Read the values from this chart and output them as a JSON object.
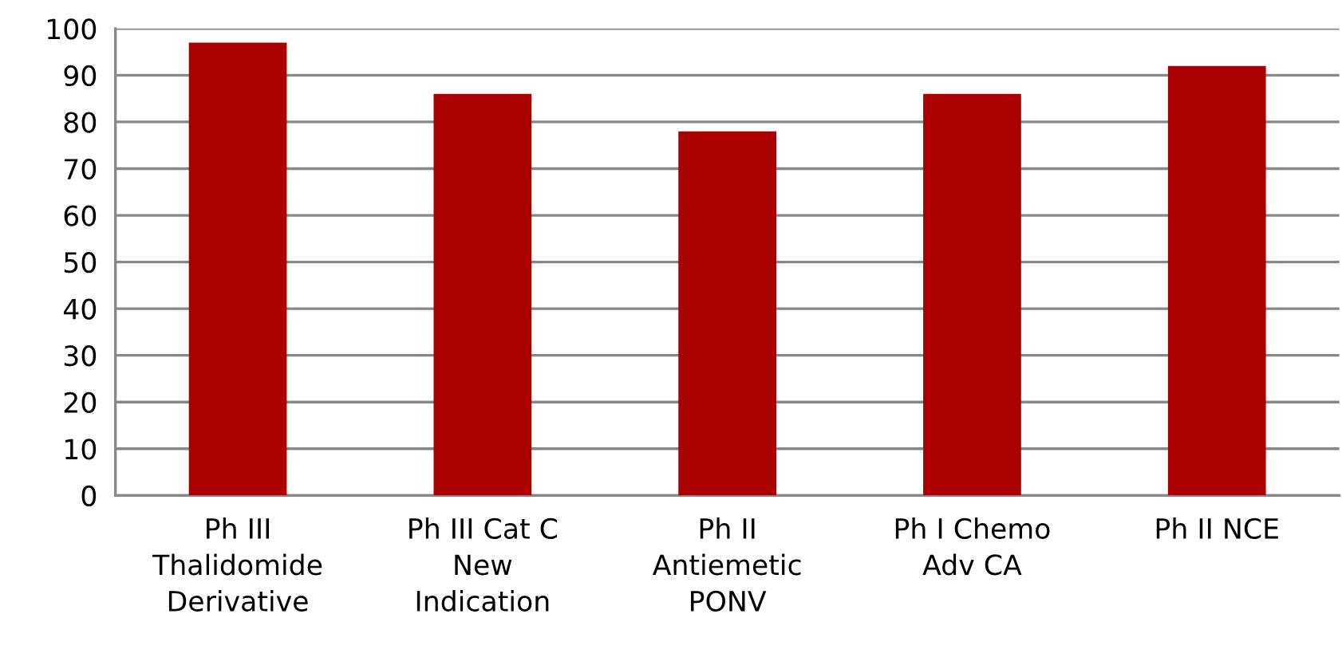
{
  "chart_data": {
    "type": "bar",
    "categories": [
      "Ph III\nThalidomide\nDerivative",
      "Ph III Cat C\nNew\nIndication",
      "Ph II\nAntiemetic\nPONV",
      "Ph I Chemo\nAdv CA",
      "Ph II NCE"
    ],
    "values": [
      97,
      86,
      78,
      86,
      92
    ],
    "color": "#ab0000",
    "ylim": [
      0,
      100
    ],
    "yticks": [
      0,
      10,
      20,
      30,
      40,
      50,
      60,
      70,
      80,
      90,
      100
    ],
    "grid": "y",
    "legend": false
  }
}
